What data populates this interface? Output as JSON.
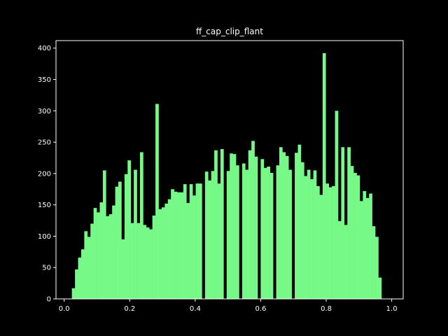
{
  "chart_data": {
    "type": "bar",
    "title": "ff_cap_clip_flant",
    "xlabel": "",
    "ylabel": "",
    "xlim": [
      -0.025,
      1.035
    ],
    "ylim": [
      0,
      412
    ],
    "xticks": [
      0.0,
      0.2,
      0.4,
      0.6,
      0.8,
      1.0
    ],
    "xtick_labels": [
      "0.0",
      "0.2",
      "0.4",
      "0.6",
      "0.8",
      "1.0"
    ],
    "yticks": [
      0,
      50,
      100,
      150,
      200,
      250,
      300,
      350,
      400
    ],
    "ytick_labels": [
      "0",
      "50",
      "100",
      "150",
      "200",
      "250",
      "300",
      "350",
      "400"
    ],
    "grid": false,
    "background": "#000000",
    "bar_color": "#77f988",
    "axis_color": "#ffffff",
    "bin_start": 0.0235,
    "bin_width": 0.00945,
    "values": [
      17,
      47,
      66,
      79,
      108,
      99,
      120,
      145,
      138,
      154,
      205,
      132,
      135,
      149,
      179,
      187,
      95,
      199,
      221,
      121,
      206,
      121,
      234,
      118,
      114,
      111,
      133,
      311,
      143,
      146,
      152,
      159,
      175,
      171,
      170,
      170,
      183,
      153,
      183,
      165,
      184,
      184,
      0,
      203,
      189,
      204,
      237,
      184,
      239,
      0,
      204,
      232,
      231,
      213,
      0,
      216,
      206,
      237,
      252,
      227,
      0,
      223,
      209,
      211,
      201,
      0,
      213,
      242,
      234,
      228,
      206,
      0,
      233,
      246,
      218,
      196,
      206,
      191,
      205,
      180,
      166,
      392,
      184,
      178,
      180,
      300,
      124,
      242,
      118,
      242,
      212,
      201,
      197,
      156,
      172,
      161,
      168,
      116,
      99,
      34
    ]
  }
}
